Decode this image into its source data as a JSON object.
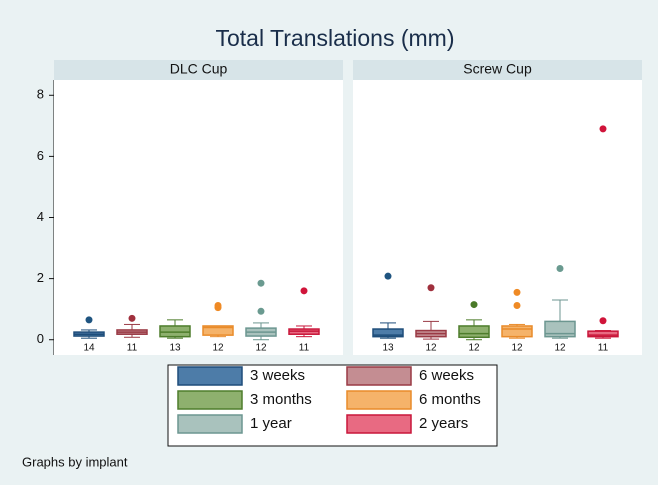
{
  "chart_data": {
    "type": "box",
    "title": "Total Translations (mm)",
    "ylim": [
      -0.5,
      8.5
    ],
    "yticks": [
      0,
      2,
      4,
      6,
      8
    ],
    "grid": false,
    "note": "Graphs by implant",
    "series": [
      {
        "name": "3 weeks",
        "color": "#4d7ca8",
        "outline": "#1e4d7a",
        "dot": "#1f5480"
      },
      {
        "name": "6 weeks",
        "color": "#c48d92",
        "outline": "#9a3a45",
        "dot": "#a0303d"
      },
      {
        "name": "3 months",
        "color": "#8eb06e",
        "outline": "#4e7d2c",
        "dot": "#4a7a28"
      },
      {
        "name": "6 months",
        "color": "#f5b36a",
        "outline": "#e98b2a",
        "dot": "#ef8a25"
      },
      {
        "name": "1 year",
        "color": "#a9c2bd",
        "outline": "#6c9690",
        "dot": "#6a9a90"
      },
      {
        "name": "2 years",
        "color": "#e86a82",
        "outline": "#c9163a",
        "dot": "#d0143a"
      }
    ],
    "panels": [
      {
        "title": "DLC Cup",
        "boxes": [
          {
            "low": 0.05,
            "q1": 0.12,
            "median": 0.18,
            "q3": 0.25,
            "high": 0.32,
            "outliers": [
              0.65
            ],
            "n": 14
          },
          {
            "low": 0.08,
            "q1": 0.18,
            "median": 0.25,
            "q3": 0.32,
            "high": 0.5,
            "outliers": [
              0.7
            ],
            "n": 11
          },
          {
            "low": 0.05,
            "q1": 0.1,
            "median": 0.25,
            "q3": 0.45,
            "high": 0.65,
            "outliers": [],
            "n": 13
          },
          {
            "low": 0.1,
            "q1": 0.15,
            "median": 0.4,
            "q3": 0.45,
            "high": 0.45,
            "outliers": [
              1.05,
              1.12
            ],
            "n": 12
          },
          {
            "low": 0.0,
            "q1": 0.12,
            "median": 0.25,
            "q3": 0.38,
            "high": 0.55,
            "outliers": [
              0.93,
              1.85
            ],
            "n": 12
          },
          {
            "low": 0.1,
            "q1": 0.18,
            "median": 0.28,
            "q3": 0.35,
            "high": 0.45,
            "outliers": [
              1.6
            ],
            "n": 11
          }
        ]
      },
      {
        "title": "Screw Cup",
        "boxes": [
          {
            "low": 0.05,
            "q1": 0.1,
            "median": 0.15,
            "q3": 0.35,
            "high": 0.55,
            "outliers": [
              2.08
            ],
            "n": 13
          },
          {
            "low": 0.02,
            "q1": 0.1,
            "median": 0.2,
            "q3": 0.3,
            "high": 0.6,
            "outliers": [
              1.7
            ],
            "n": 12
          },
          {
            "low": 0.0,
            "q1": 0.08,
            "median": 0.2,
            "q3": 0.45,
            "high": 0.65,
            "outliers": [
              1.15
            ],
            "n": 12
          },
          {
            "low": 0.05,
            "q1": 0.1,
            "median": 0.35,
            "q3": 0.45,
            "high": 0.5,
            "outliers": [
              1.12,
              1.55
            ],
            "n": 12
          },
          {
            "low": 0.05,
            "q1": 0.1,
            "median": 0.2,
            "q3": 0.6,
            "high": 1.3,
            "outliers": [
              2.33
            ],
            "n": 12
          },
          {
            "low": 0.05,
            "q1": 0.1,
            "median": 0.15,
            "q3": 0.28,
            "high": 0.3,
            "outliers": [
              0.62,
              6.9
            ],
            "n": 11
          }
        ]
      }
    ]
  }
}
